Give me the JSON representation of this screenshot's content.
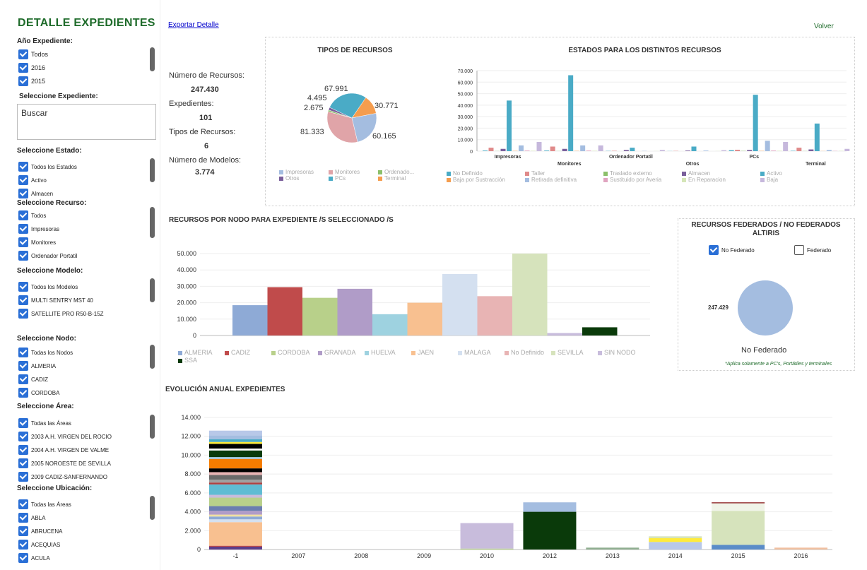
{
  "sidebar": {
    "title": "DETALLE EXPEDIENTES",
    "anio_label": "Año Expediente:",
    "anio_items": [
      "Todos",
      "2016",
      "2015"
    ],
    "expediente_label": "Seleccione Expediente:",
    "search_value": "Buscar",
    "estado_label": "Seleccione Estado:",
    "estado_items": [
      "Todos los Estados",
      "Activo",
      "Almacen"
    ],
    "recurso_label": "Seleccione Recurso:",
    "recurso_items": [
      "Todos",
      "Impresoras",
      "Monitores",
      "Ordenador Portatil"
    ],
    "modelo_label": "Seleccione Modelo:",
    "modelo_items": [
      "Todos los Modelos",
      "MULTI SENTRY MST 40",
      "SATELLITE PRO R50-B-15Z"
    ],
    "nodo_label": "Seleccione Nodo:",
    "nodo_items": [
      "Todas los Nodos",
      "ALMERIA",
      "CADIZ",
      "CORDOBA"
    ],
    "area_label": "Seleccione Área:",
    "area_items": [
      "Todas las Áreas",
      "2003 A.H. VIRGEN DEL ROCIO",
      "2004 A.H. VIRGEN DE VALME",
      "2005 NOROESTE DE SEVILLA",
      "2009 CADIZ-SANFERNANDO"
    ],
    "ubicacion_label": "Seleccione Ubicación:",
    "ubicacion_items": [
      "Todas las Áreas",
      "ABLA",
      "ABRUCENA",
      "ACEQUIAS",
      "ACULA"
    ]
  },
  "header": {
    "export_link": "Exportar Detalle",
    "volver": "Volver"
  },
  "stats": [
    {
      "label": "Número de Recursos:",
      "value": "247.430"
    },
    {
      "label": "Expedientes:",
      "value": "101"
    },
    {
      "label": "Tipos de Recursos:",
      "value": "6"
    },
    {
      "label": "Número de Modelos:",
      "value": "3.774"
    }
  ],
  "federados": {
    "title": "RECURSOS FEDERADOS / NO FEDERADOS ALTIRIS",
    "cb_no_federado": "No Federado",
    "cb_federado": "Federado",
    "value_label": "247.429",
    "caption": "No Federado",
    "note": "*Aplica solamente a PC's, Portátiles y terminales"
  },
  "chart_data": [
    {
      "type": "pie",
      "title": "TIPOS DE RECURSOS",
      "slices": [
        {
          "name": "Impresoras",
          "value": 60165,
          "label": "60.165",
          "color": "#a4bde0"
        },
        {
          "name": "Monitores",
          "value": 81333,
          "label": "81.333",
          "color": "#e0a4a8"
        },
        {
          "name": "Ordenado...",
          "value": 2675,
          "label": "2.675",
          "color": "#8cc06a"
        },
        {
          "name": "Otros",
          "value": 4495,
          "label": "4.495",
          "color": "#7a5f9b"
        },
        {
          "name": "PCs",
          "value": 67991,
          "label": "67.991",
          "color": "#4aabc6"
        },
        {
          "name": "Terminal",
          "value": 30771,
          "label": "30.771",
          "color": "#f59d4e"
        }
      ]
    },
    {
      "type": "bar",
      "title": "ESTADOS PARA LOS DISTINTOS RECURSOS",
      "categories": [
        "Impresoras",
        "Monitores",
        "Ordenador Portatil",
        "Otros",
        "PCs",
        "Terminal"
      ],
      "ylim": [
        0,
        70000
      ],
      "yticks": [
        "0",
        "10.000",
        "20.000",
        "30.000",
        "40.000",
        "50.000",
        "60.000",
        "70.000"
      ],
      "series": [
        {
          "name": "No Definido",
          "color": "#4aabc6",
          "values": [
            500,
            500,
            200,
            100,
            800,
            300
          ]
        },
        {
          "name": "Taller",
          "color": "#e08a8a",
          "values": [
            3000,
            4000,
            300,
            200,
            1200,
            3000
          ]
        },
        {
          "name": "Traslado externo",
          "color": "#8cc06a",
          "values": [
            100,
            100,
            0,
            0,
            200,
            100
          ]
        },
        {
          "name": "Almacen",
          "color": "#7a5f9b",
          "values": [
            2000,
            2000,
            1000,
            500,
            1000,
            1500
          ]
        },
        {
          "name": "Activo",
          "color": "#4aabc6",
          "values": [
            44000,
            66000,
            3000,
            4000,
            49000,
            24000
          ]
        },
        {
          "name": "Baja por Sustracción",
          "color": "#f59d4e",
          "values": [
            200,
            200,
            0,
            0,
            200,
            100
          ]
        },
        {
          "name": "Retirada definitiva",
          "color": "#a4bde0",
          "values": [
            5000,
            5000,
            200,
            500,
            9000,
            1000
          ]
        },
        {
          "name": "Sustituido por Averia",
          "color": "#e0a4c0",
          "values": [
            500,
            500,
            0,
            0,
            500,
            200
          ]
        },
        {
          "name": "En Reparacion",
          "color": "#d5e6b8",
          "values": [
            300,
            300,
            100,
            100,
            300,
            200
          ]
        },
        {
          "name": "Baja",
          "color": "#c6b8dc",
          "values": [
            8000,
            5000,
            1000,
            800,
            8000,
            2000
          ]
        }
      ]
    },
    {
      "type": "bar",
      "title": "RECURSOS POR NODO PARA EXPEDIENTE /S SELECCIONADO /S",
      "ylim": [
        0,
        50000
      ],
      "yticks": [
        "0",
        "10.000",
        "20.000",
        "30.000",
        "40.000",
        "50.000"
      ],
      "series": [
        {
          "name": "ALMERIA",
          "color": "#8eaad6",
          "value": 18500
        },
        {
          "name": "CADIZ",
          "color": "#c04b4b",
          "value": 29500
        },
        {
          "name": "CORDOBA",
          "color": "#b8d08a",
          "value": 23000
        },
        {
          "name": "GRANADA",
          "color": "#b09cc8",
          "value": 28500
        },
        {
          "name": "HUELVA",
          "color": "#9ed2e0",
          "value": 13000
        },
        {
          "name": "JAEN",
          "color": "#f8c090",
          "value": 20000
        },
        {
          "name": "MALAGA",
          "color": "#d4e0f0",
          "value": 37500
        },
        {
          "name": "No Definido",
          "color": "#e8b4b4",
          "value": 24000
        },
        {
          "name": "SEVILLA",
          "color": "#d6e3bc",
          "value": 50000
        },
        {
          "name": "SIN NODO",
          "color": "#c8bcdc",
          "value": 1500
        },
        {
          "name": "SSA",
          "color": "#0a3a0a",
          "value": 5000
        }
      ]
    },
    {
      "type": "pie",
      "slices": [
        {
          "name": "No Federado",
          "value": 247429,
          "label": "247.429",
          "color": "#a4bde0"
        }
      ]
    },
    {
      "type": "bar",
      "title": "EVOLUCIÓN ANUAL EXPEDIENTES",
      "categories": [
        "-1",
        "2007",
        "2008",
        "2009",
        "2010",
        "2012",
        "2013",
        "2014",
        "2015",
        "2016"
      ],
      "ylim": [
        0,
        14000
      ],
      "yticks": [
        "0",
        "2.000",
        "4.000",
        "6.000",
        "8.000",
        "10.000",
        "12.000",
        "14.000"
      ],
      "stacks": [
        [
          [
            300,
            "#5a3d8a"
          ],
          [
            100,
            "#c04b4b"
          ],
          [
            2500,
            "#f8c090"
          ],
          [
            300,
            "#d4e0f0"
          ],
          [
            300,
            "#8eaad6"
          ],
          [
            200,
            "#f0e0a0"
          ],
          [
            400,
            "#b09cc8"
          ],
          [
            500,
            "#6a7db0"
          ],
          [
            900,
            "#b8d08a"
          ],
          [
            300,
            "#c8bcdc"
          ],
          [
            1100,
            "#5fbcd3"
          ],
          [
            200,
            "#b04040"
          ],
          [
            300,
            "#a0a0a0"
          ],
          [
            500,
            "#6a6a6a"
          ],
          [
            300,
            "#e8b4b4"
          ],
          [
            400,
            "#000000"
          ],
          [
            1000,
            "#f57c00"
          ],
          [
            200,
            "#a0c8e0"
          ],
          [
            700,
            "#0a3a0a"
          ],
          [
            200,
            "#ffffff"
          ],
          [
            500,
            "#000000"
          ],
          [
            200,
            "#ffeb3b"
          ],
          [
            300,
            "#4aabc6"
          ],
          [
            400,
            "#a4bde0"
          ],
          [
            500,
            "#b8c8e8"
          ]
        ],
        [
          [
            0,
            "#cccccc"
          ]
        ],
        [
          [
            0,
            "#cccccc"
          ]
        ],
        [
          [
            0,
            "#cccccc"
          ]
        ],
        [
          [
            100,
            "#b8d08a"
          ],
          [
            2700,
            "#c8bcdc"
          ]
        ],
        [
          [
            4000,
            "#0a3a0a"
          ],
          [
            1000,
            "#a4bde0"
          ]
        ],
        [
          [
            200,
            "#8fae90"
          ]
        ],
        [
          [
            800,
            "#b8c8e8"
          ],
          [
            400,
            "#ffeb3b"
          ],
          [
            200,
            "#d6e3bc"
          ]
        ],
        [
          [
            500,
            "#5a8cc8"
          ],
          [
            3600,
            "#d6e3bc"
          ],
          [
            800,
            "#f0f4e8"
          ],
          [
            100,
            "#8b2020"
          ]
        ],
        [
          [
            200,
            "#f0c0a0"
          ]
        ]
      ]
    }
  ]
}
